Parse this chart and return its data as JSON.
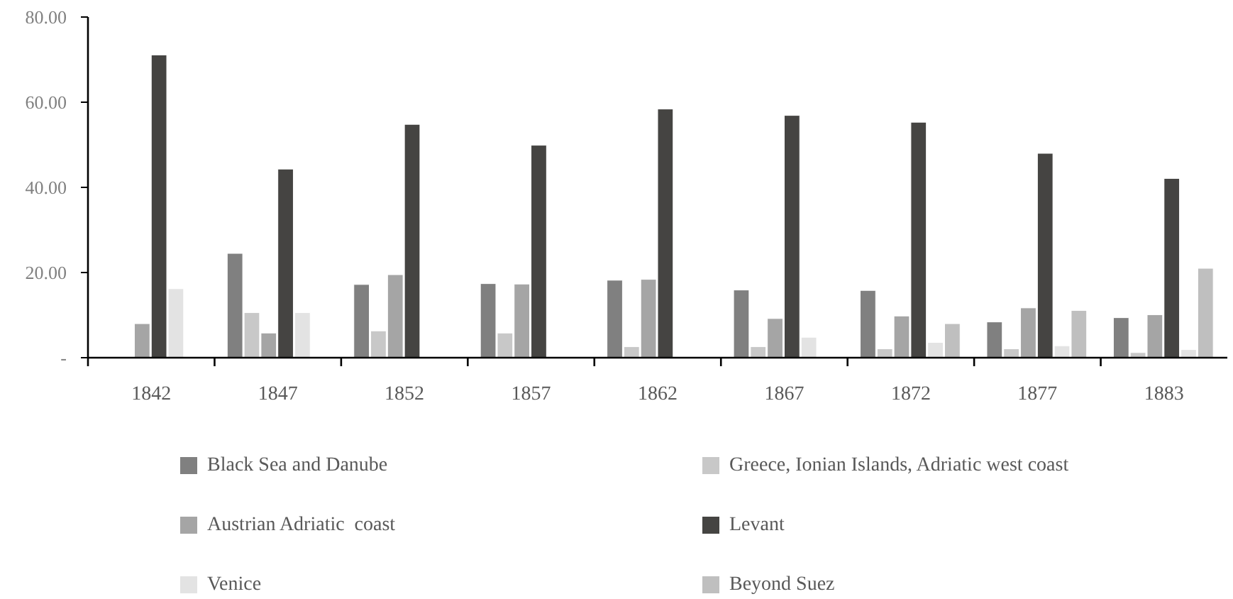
{
  "chart_data": {
    "type": "bar",
    "categories": [
      "1842",
      "1847",
      "1852",
      "1857",
      "1862",
      "1867",
      "1872",
      "1877",
      "1883"
    ],
    "series": [
      {
        "name": "Black Sea and Danube",
        "color": "#808080",
        "values": [
          null,
          24.5,
          17.2,
          17.4,
          18.2,
          15.9,
          15.8,
          8.4,
          9.4
        ]
      },
      {
        "name": "Greece, Ionian Islands, Adriatic west coast",
        "color": "#c8c8c8",
        "values": [
          null,
          10.6,
          6.3,
          5.8,
          2.6,
          2.6,
          2.1,
          2.1,
          1.2
        ]
      },
      {
        "name": "Austrian Adriatic  coast",
        "color": "#a5a5a5",
        "values": [
          8.0,
          5.8,
          19.5,
          17.3,
          18.4,
          9.2,
          9.8,
          11.7,
          10.1
        ]
      },
      {
        "name": "Levant",
        "color": "#454442",
        "values": [
          71.1,
          44.3,
          54.8,
          49.9,
          58.4,
          56.9,
          55.3,
          48.0,
          42.1
        ]
      },
      {
        "name": "Venice",
        "color": "#e3e3e3",
        "values": [
          16.2,
          10.6,
          null,
          null,
          null,
          4.8,
          3.6,
          2.8,
          1.9
        ]
      },
      {
        "name": "Beyond Suez",
        "color": "#bfbfbf",
        "values": [
          null,
          null,
          null,
          null,
          null,
          null,
          8.0,
          11.1,
          21.0
        ]
      }
    ],
    "ylim": [
      0,
      80
    ],
    "yticks": [
      {
        "value": 0,
        "label": "-"
      },
      {
        "value": 20,
        "label": "20.00"
      },
      {
        "value": 40,
        "label": "40.00"
      },
      {
        "value": 60,
        "label": "60.00"
      },
      {
        "value": 80,
        "label": "80.00"
      }
    ],
    "grid": false,
    "legend": "bottom"
  }
}
